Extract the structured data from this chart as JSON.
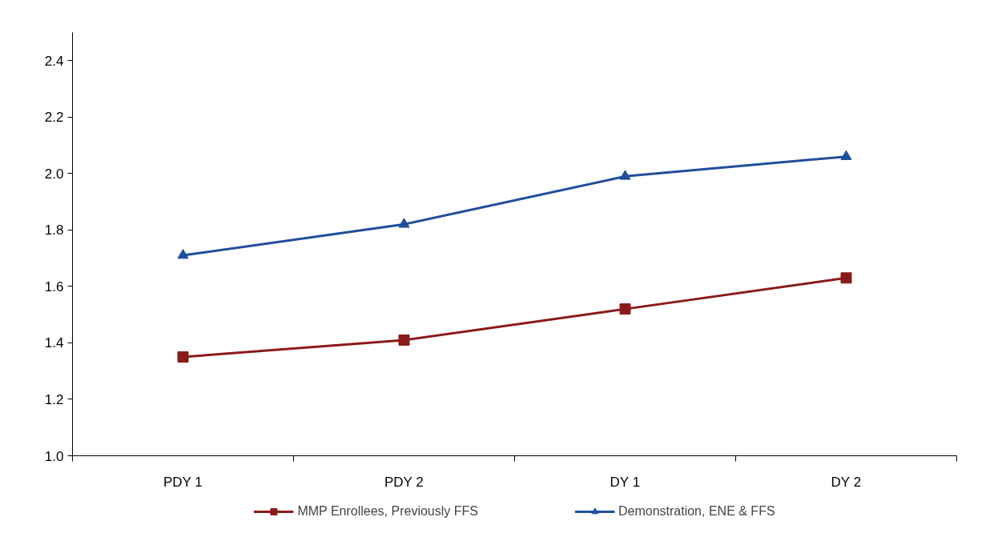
{
  "chart_data": {
    "type": "line",
    "categories": [
      "PDY 1",
      "PDY 2",
      "DY 1",
      "DY 2"
    ],
    "series": [
      {
        "name": "MMP Enrollees, Previously FFS",
        "color": "#8b1a1a",
        "marker": "square",
        "values": [
          1.35,
          1.41,
          1.52,
          1.63
        ]
      },
      {
        "name": "Demonstration, ENE & FFS",
        "color": "#1f4e9c",
        "marker": "triangle",
        "values": [
          1.71,
          1.82,
          1.99,
          2.06
        ]
      }
    ],
    "ylim": [
      1.0,
      2.5
    ],
    "yticks": [
      {
        "value": 1.0,
        "label": "1.0"
      },
      {
        "value": 1.2,
        "label": "1.2"
      },
      {
        "value": 1.4,
        "label": "1.4"
      },
      {
        "value": 1.6,
        "label": "1.6"
      },
      {
        "value": 1.8,
        "label": "1.8"
      },
      {
        "value": 2.0,
        "label": "2.0"
      },
      {
        "value": 2.2,
        "label": "2.2"
      },
      {
        "value": 2.4,
        "label": "2.4"
      }
    ],
    "grid": false,
    "legend": "bottom",
    "line_style": "solid"
  }
}
